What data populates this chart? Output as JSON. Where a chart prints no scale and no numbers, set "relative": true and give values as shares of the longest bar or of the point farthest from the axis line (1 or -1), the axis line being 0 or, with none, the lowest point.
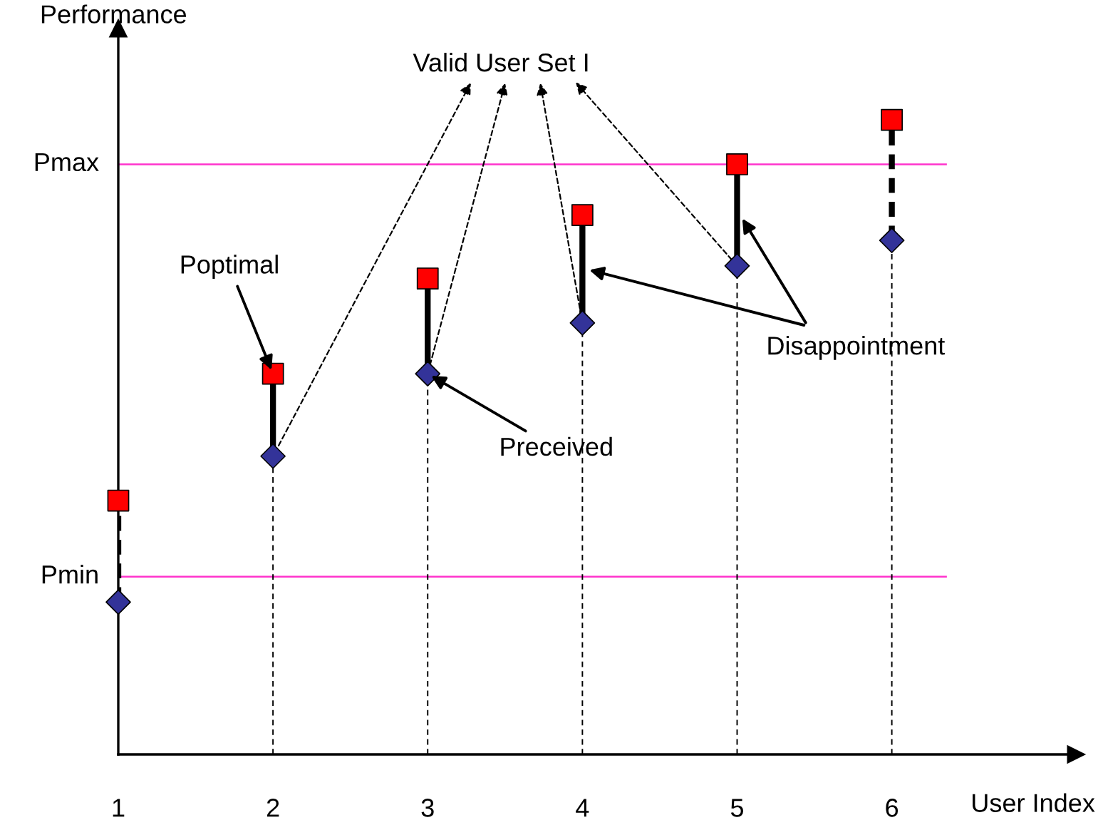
{
  "chart_data": {
    "type": "scatter",
    "xlabel": "User Index",
    "ylabel": "Performance",
    "relative": true,
    "categories": [
      "1",
      "2",
      "3",
      "4",
      "5",
      "6"
    ],
    "series": [
      {
        "color": "#ff0000",
        "marker": "square",
        "values": [
          0.4,
          0.6,
          0.75,
          0.85,
          0.93,
          1.0
        ]
      },
      {
        "color": "#333399",
        "marker": "diamond",
        "values": [
          0.24,
          0.47,
          0.6,
          0.68,
          0.77,
          0.81
        ]
      }
    ],
    "ref_lines": [
      {
        "axis": "y",
        "value": 0.93,
        "label": "Pmax",
        "color": "#ff33cc"
      },
      {
        "axis": "y",
        "value": 0.28,
        "label": "Pmin",
        "color": "#ff33cc"
      }
    ],
    "annotations": [
      {
        "text": "Poptimal",
        "x": "2",
        "y": 0.6
      },
      {
        "text": "Preceived",
        "x": "3",
        "y": 0.6
      },
      "Disappointment",
      "Valid User Set I"
    ],
    "grid": "x",
    "legend": false
  }
}
